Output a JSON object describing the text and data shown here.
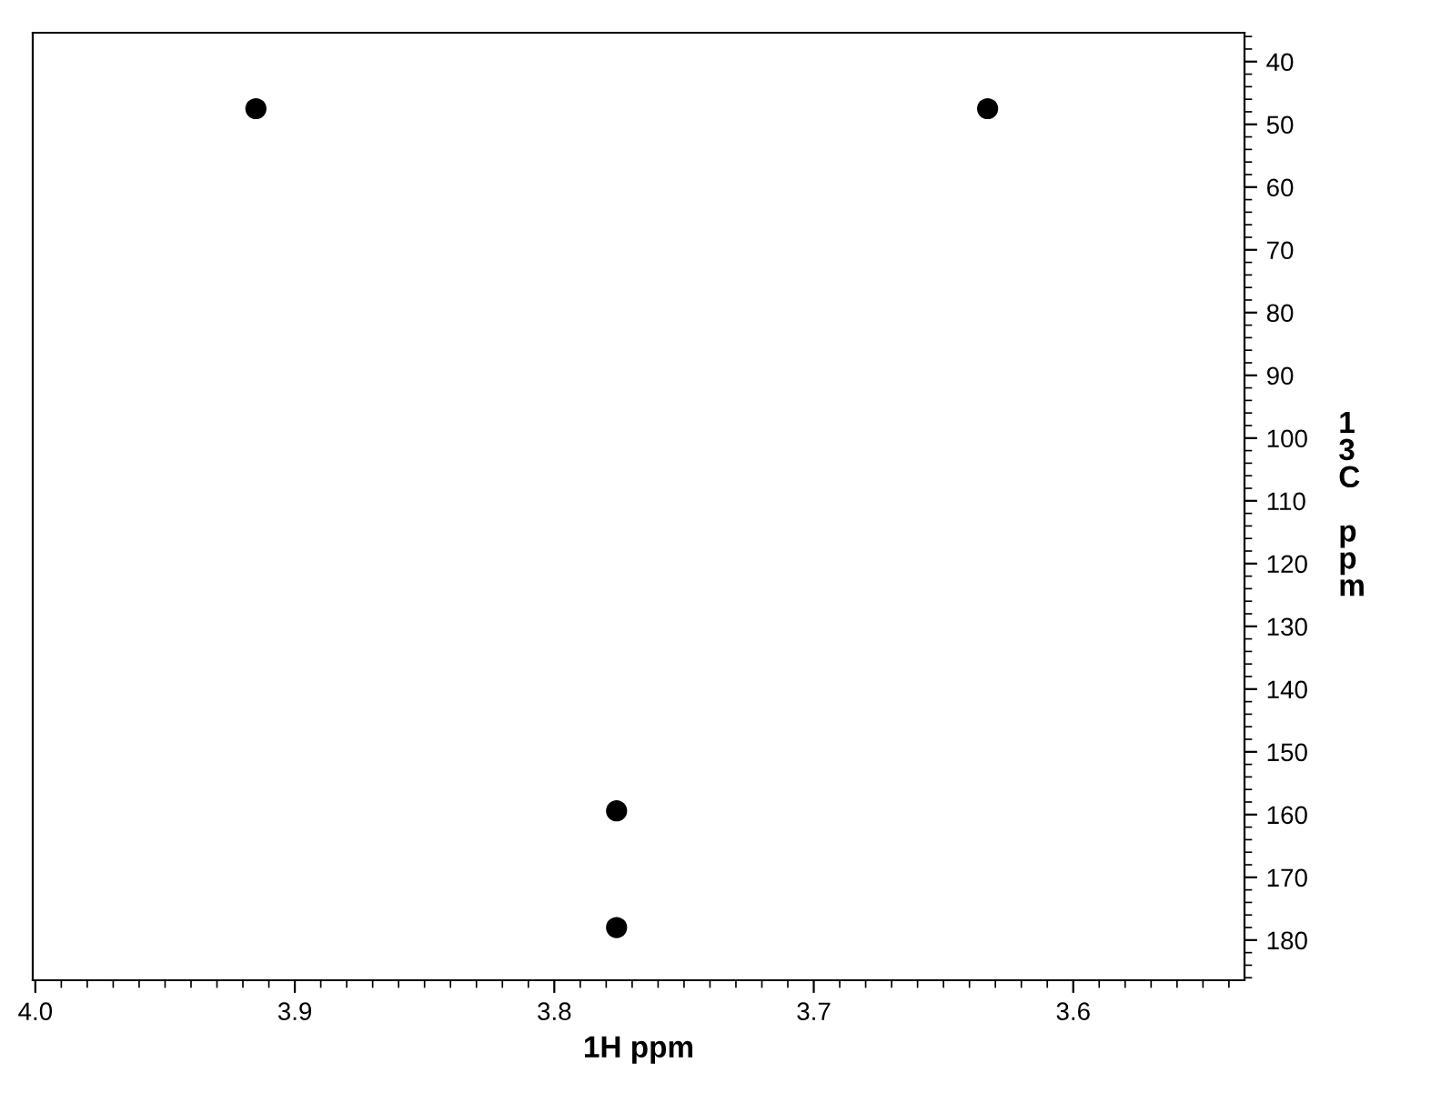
{
  "chart_data": {
    "type": "scatter",
    "xlabel": "1H ppm",
    "ylabel": "13C ppm",
    "x": [
      3.915,
      3.633,
      3.776,
      3.776
    ],
    "values": [
      47.5,
      47.5,
      159.4,
      178.0
    ],
    "color": "#000000",
    "xlim": [
      4.001,
      3.534
    ],
    "xticks": [
      {
        "value": 4.0,
        "label": "4.0"
      },
      3.9,
      3.8,
      3.7,
      3.6
    ],
    "ylim": [
      186.4,
      35.4
    ],
    "yticks": [
      40,
      50,
      60,
      70,
      80,
      90,
      100,
      110,
      120,
      130,
      140,
      150,
      160,
      170,
      180
    ],
    "grid": false,
    "legend": false,
    "marker": "circle"
  }
}
